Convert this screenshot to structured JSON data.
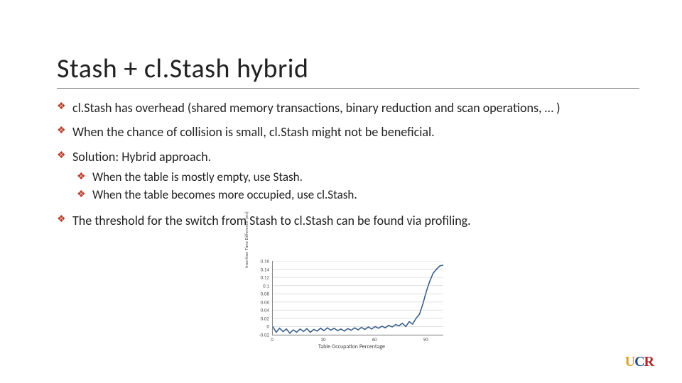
{
  "title": "Stash + cl.Stash hybrid",
  "bullets": {
    "b1": "cl.Stash has overhead (shared memory transactions, binary reduction and scan operations, … )",
    "b2": "When the chance of collision is small, cl.Stash might not be beneficial.",
    "b3": "Solution: Hybrid approach.",
    "b3a": "When the table is mostly empty, use Stash.",
    "b3b": "When the table becomes more occupied, use cl.Stash.",
    "b4": "The threshold for the switch from Stash to cl.Stash can be found via profiling."
  },
  "chart": {
    "type": "line",
    "ylabel": "Insertion Time Difference (ms)",
    "xlabel": "Table Occupation Percentage",
    "yticks": [
      "0.16",
      "0.14",
      "0.12",
      "0.1",
      "0.08",
      "0.06",
      "0.04",
      "0.02",
      "0",
      "-0.02"
    ],
    "ylim": [
      -0.02,
      0.16
    ],
    "xticks": [
      "0",
      "30",
      "60",
      "90"
    ],
    "xlim": [
      0,
      100
    ],
    "grid_color": "#e0e0e0",
    "background_color": "#ffffff",
    "line_color": "#3a5f8a",
    "line_width": 1.6,
    "x": [
      0,
      2,
      4,
      6,
      8,
      10,
      12,
      14,
      16,
      18,
      20,
      22,
      24,
      26,
      28,
      30,
      32,
      34,
      36,
      38,
      40,
      42,
      44,
      46,
      48,
      50,
      52,
      54,
      56,
      58,
      60,
      62,
      64,
      66,
      68,
      70,
      72,
      74,
      76,
      78,
      80,
      82,
      84,
      86,
      88,
      90,
      92,
      94,
      96,
      98,
      100
    ],
    "y": [
      0.0,
      -0.014,
      -0.004,
      -0.012,
      -0.006,
      -0.016,
      -0.008,
      -0.014,
      -0.006,
      -0.012,
      -0.005,
      -0.014,
      -0.007,
      -0.011,
      -0.004,
      -0.01,
      -0.003,
      -0.009,
      -0.004,
      -0.01,
      -0.006,
      -0.011,
      -0.005,
      -0.009,
      -0.003,
      -0.008,
      -0.002,
      -0.007,
      -0.001,
      -0.006,
      0.0,
      -0.004,
      0.001,
      -0.003,
      0.003,
      -0.001,
      0.005,
      0.002,
      0.008,
      0.0,
      0.012,
      0.006,
      0.02,
      0.03,
      0.055,
      0.085,
      0.11,
      0.13,
      0.14,
      0.148,
      0.15
    ]
  },
  "logo": {
    "u": "U",
    "c": "C",
    "r": "R"
  }
}
